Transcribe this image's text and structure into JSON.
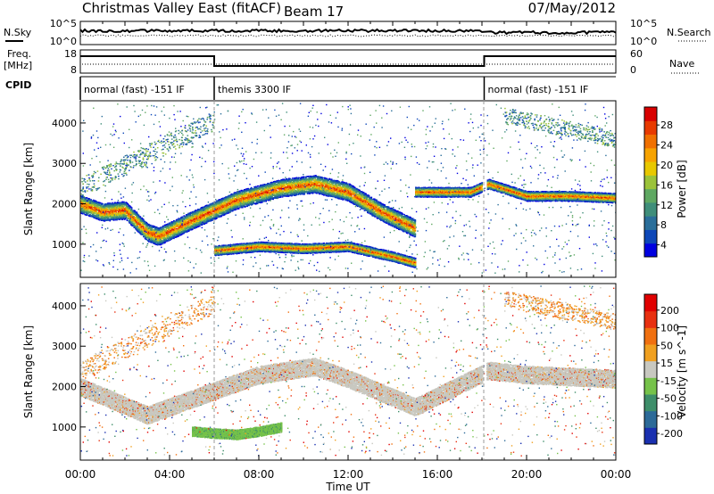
{
  "header": {
    "station": "Christmas Valley East (fitACF)",
    "beam": "Beam 17",
    "date": "07/May/2012"
  },
  "top_panels": {
    "nsky_label": "N.Sky",
    "nsearch_label": "N.Search",
    "nsky_ticks": [
      "10^5",
      "10^0"
    ],
    "nsearch_ticks": [
      "10^5",
      "10^0"
    ],
    "freq_label": "Freq.",
    "freq_unit": "[MHz]",
    "freq_ticks": [
      "18",
      "8"
    ],
    "nave_label": "Nave",
    "nave_ticks": [
      "60",
      "0"
    ],
    "cpid_label": "CPID",
    "cpid_segments": [
      {
        "label": "normal (fast) -151 IF",
        "start_h": 0,
        "end_h": 6
      },
      {
        "label": "themis 3300 IF",
        "start_h": 6,
        "end_h": 18.1
      },
      {
        "label": "normal (fast) -151 IF",
        "start_h": 18.1,
        "end_h": 24
      }
    ]
  },
  "chart_data": [
    {
      "type": "heatmap",
      "title": "",
      "xlabel": "",
      "ylabel": "Slant Range [km]",
      "xlim": [
        0,
        24
      ],
      "ylim": [
        180,
        4550
      ],
      "yticks": [
        "1000",
        "2000",
        "3000",
        "4000"
      ],
      "colorbar": {
        "label": "Power [dB]",
        "ticks": [
          "28",
          "24",
          "20",
          "16",
          "12",
          "8",
          "4"
        ],
        "colors": [
          "#0000e0",
          "#0d47b8",
          "#2a6e9a",
          "#3f8e7a",
          "#5fa862",
          "#9bc33a",
          "#e8c800",
          "#f7a300",
          "#f07000",
          "#e83a00",
          "#d80000"
        ]
      },
      "series": [
        {
          "name": "main echo band (dense)",
          "x": [
            0,
            1,
            2,
            3,
            3.5,
            5,
            7,
            9,
            10.5,
            12,
            13.5,
            15
          ],
          "y": [
            2000,
            1800,
            1850,
            1300,
            1200,
            1600,
            2100,
            2400,
            2500,
            2300,
            1800,
            1400
          ]
        },
        {
          "name": "lower echo band",
          "x": [
            6,
            8,
            10,
            12,
            14,
            15
          ],
          "y": [
            850,
            950,
            900,
            950,
            700,
            550
          ]
        },
        {
          "name": "evening band",
          "x": [
            15,
            17.5,
            18.3,
            20,
            22,
            24
          ],
          "y": [
            2300,
            2300,
            2500,
            2200,
            2200,
            2150
          ]
        }
      ]
    },
    {
      "type": "heatmap",
      "title": "",
      "xlabel": "Time UT",
      "ylabel": "Slant Range [km]",
      "xlim": [
        0,
        24
      ],
      "ylim": [
        180,
        4550
      ],
      "xticks": [
        "00:00",
        "04:00",
        "08:00",
        "12:00",
        "16:00",
        "20:00",
        "00:00"
      ],
      "yticks": [
        "1000",
        "2000",
        "3000",
        "4000"
      ],
      "colorbar": {
        "label": "Velocity [m s^-1]",
        "ticks": [
          "200",
          "100",
          "50",
          "15",
          "-15",
          "-50",
          "-100",
          "-200"
        ],
        "colors": [
          "#1a30b0",
          "#2c6a98",
          "#3e8e6a",
          "#76c24a",
          "#c8c8c0",
          "#f0a020",
          "#f07010",
          "#e83010",
          "#e00000"
        ]
      },
      "series": [
        {
          "name": "ground scatter (grey)",
          "x": [
            0,
            3,
            5,
            8,
            10.5,
            12,
            15,
            18.3,
            20,
            24
          ],
          "y": [
            2000,
            1300,
            1700,
            2300,
            2500,
            2200,
            1500,
            2400,
            2300,
            2200
          ]
        },
        {
          "name": "green ionospheric scatter",
          "x": [
            5,
            6,
            7,
            8,
            9
          ],
          "y": [
            900,
            850,
            820,
            900,
            1000
          ]
        }
      ]
    }
  ]
}
